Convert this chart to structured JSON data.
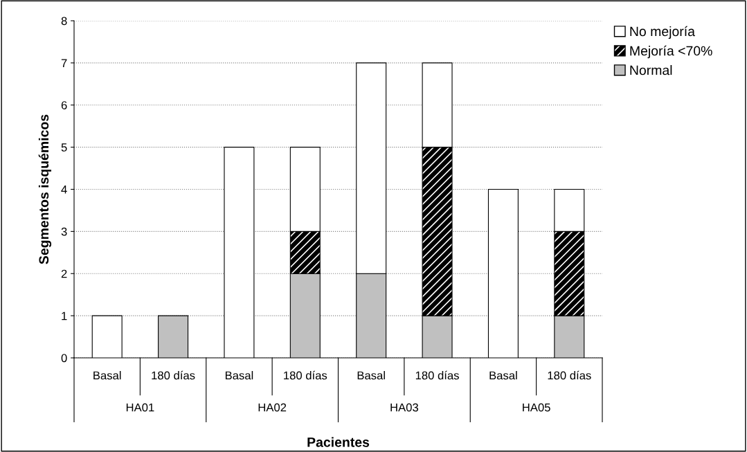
{
  "chart_data": {
    "type": "bar",
    "stacked": true,
    "xlabel": "Pacientes",
    "ylabel": "Segmentos isquémicos",
    "categories": [
      "Basal",
      "180 días",
      "Basal",
      "180 días",
      "Basal",
      "180 días",
      "Basal",
      "180 días"
    ],
    "annotations": [
      "HA01",
      "HA02",
      "HA03",
      "HA05"
    ],
    "series": [
      {
        "name": "Normal",
        "color": "#c0c0c0",
        "values": [
          0,
          1,
          0,
          2,
          2,
          1,
          0,
          1
        ]
      },
      {
        "name": "Mejoría <70%",
        "color": "#000000",
        "values": [
          0,
          0,
          0,
          1,
          0,
          4,
          0,
          2
        ]
      },
      {
        "name": "No mejoría",
        "color": "#ffffff",
        "values": [
          1,
          0,
          5,
          2,
          5,
          2,
          4,
          1
        ]
      }
    ],
    "ylim": [
      0,
      8
    ],
    "yticks": [
      0,
      1,
      2,
      3,
      4,
      5,
      6,
      7,
      8
    ],
    "grid": "y",
    "legend": "top right"
  }
}
